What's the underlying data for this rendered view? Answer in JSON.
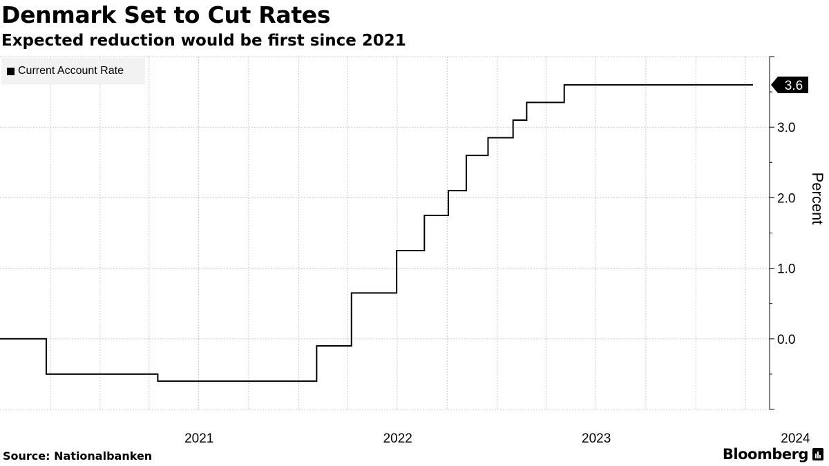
{
  "header": {
    "title": "Denmark Set to Cut Rates",
    "subtitle": "Expected reduction would be first since 2021"
  },
  "legend": {
    "label": "Current Account Rate"
  },
  "footer": {
    "source": "Source: Nationalbanken",
    "brand": "Bloomberg"
  },
  "colors": {
    "line": "#000000",
    "grid": "#c8c8c8",
    "legend_bg": "#f2f2f2"
  },
  "chart_data": {
    "type": "line",
    "step": true,
    "title": "Denmark Set to Cut Rates",
    "subtitle": "Expected reduction would be first since 2021",
    "ylabel": "Percent",
    "xlabel": "",
    "ylim": [
      -1.0,
      4.0
    ],
    "y_ticks": [
      0.0,
      1.0,
      2.0,
      3.0
    ],
    "y_tick_labels": [
      "0.0",
      "1.0",
      "2.0",
      "3.0"
    ],
    "x_ticks": [
      "2021",
      "2022",
      "2023",
      "2024"
    ],
    "x_range": [
      "2020-07-01",
      "2024-04-15"
    ],
    "grid": true,
    "legend_position": "top-left",
    "last_value_label": "3.6",
    "series": [
      {
        "name": "Current Account Rate",
        "steps": [
          {
            "date": "2020-07-01",
            "value": 0.0
          },
          {
            "date": "2020-09-24",
            "value": -0.5
          },
          {
            "date": "2021-04-17",
            "value": -0.6
          },
          {
            "date": "2022-02-03",
            "value": -0.1
          },
          {
            "date": "2022-04-08",
            "value": 0.65
          },
          {
            "date": "2022-06-30",
            "value": 1.25
          },
          {
            "date": "2022-08-20",
            "value": 1.75
          },
          {
            "date": "2022-10-03",
            "value": 2.1
          },
          {
            "date": "2022-11-05",
            "value": 2.6
          },
          {
            "date": "2022-12-15",
            "value": 2.85
          },
          {
            "date": "2023-01-30",
            "value": 3.1
          },
          {
            "date": "2023-02-24",
            "value": 3.35
          },
          {
            "date": "2023-05-04",
            "value": 3.6
          },
          {
            "date": "2024-04-15",
            "value": 3.6
          }
        ]
      }
    ]
  }
}
